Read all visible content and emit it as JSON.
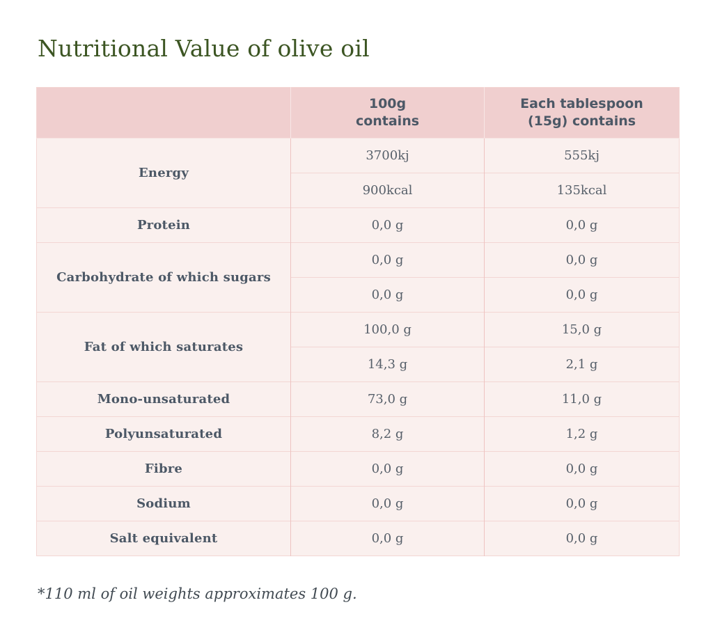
{
  "page": {
    "title": "Nutritional Value of olive oil",
    "footnote": "*110 ml of oil weights approximates 100 g."
  },
  "table": {
    "header": {
      "col_label": "",
      "col_100g": "100g\ncontains",
      "col_tablespoon": "Each tablespoon\n(15g) contains"
    },
    "groups": [
      {
        "label": "Energy",
        "rows": [
          {
            "g100": "3700kj",
            "tbsp": "555kj"
          },
          {
            "g100": "900kcal",
            "tbsp": "135kcal"
          }
        ]
      },
      {
        "label": "Protein",
        "rows": [
          {
            "g100": "0,0 g",
            "tbsp": "0,0 g"
          }
        ]
      },
      {
        "label": "Carbohydrate of which sugars",
        "rows": [
          {
            "g100": "0,0 g",
            "tbsp": "0,0 g"
          },
          {
            "g100": "0,0 g",
            "tbsp": "0,0 g"
          }
        ]
      },
      {
        "label": "Fat of which saturates",
        "rows": [
          {
            "g100": "100,0 g",
            "tbsp": "15,0 g"
          },
          {
            "g100": "14,3 g",
            "tbsp": "2,1 g"
          }
        ]
      },
      {
        "label": "Mono-unsaturated",
        "rows": [
          {
            "g100": "73,0 g",
            "tbsp": "11,0 g"
          }
        ]
      },
      {
        "label": "Polyunsaturated",
        "rows": [
          {
            "g100": "8,2 g",
            "tbsp": "1,2 g"
          }
        ]
      },
      {
        "label": "Fibre",
        "rows": [
          {
            "g100": "0,0 g",
            "tbsp": "0,0 g"
          }
        ]
      },
      {
        "label": "Sodium",
        "rows": [
          {
            "g100": "0,0 g",
            "tbsp": "0,0 g"
          }
        ]
      },
      {
        "label": "Salt equivalent",
        "rows": [
          {
            "g100": "0,0 g",
            "tbsp": "0,0 g"
          }
        ]
      }
    ]
  },
  "colors": {
    "title_green": "#3c5523",
    "header_background": "#f0cfcf",
    "row_background": "#faf0ee",
    "vertical_border": "#eec3c1",
    "horizontal_border": "#f3d6d3",
    "table_text": "#4c5866",
    "value_text": "#57606a",
    "page_background": "#ffffff"
  }
}
